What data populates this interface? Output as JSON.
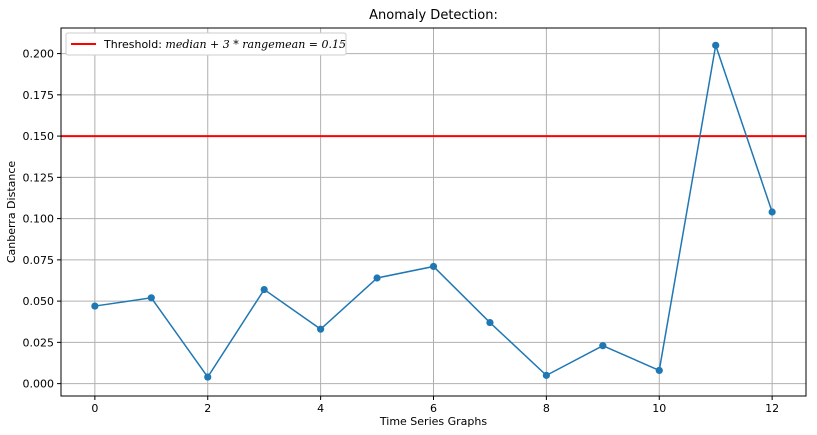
{
  "chart_data": {
    "type": "line",
    "title": "Anomaly Detection:",
    "xlabel": "Time Series Graphs",
    "ylabel": "Canberra Distance",
    "xlim": [
      -0.6,
      12.6
    ],
    "ylim": [
      -0.0075,
      0.2155
    ],
    "xticks": [
      0,
      2,
      4,
      6,
      8,
      10,
      12
    ],
    "xtick_labels": [
      "0",
      "2",
      "4",
      "6",
      "8",
      "10",
      "12"
    ],
    "yticks": [
      0.0,
      0.025,
      0.05,
      0.075,
      0.1,
      0.125,
      0.15,
      0.175,
      0.2
    ],
    "ytick_labels": [
      "0.000",
      "0.025",
      "0.050",
      "0.075",
      "0.100",
      "0.125",
      "0.150",
      "0.175",
      "0.200"
    ],
    "grid": true,
    "legend_position": "top-left",
    "series": [
      {
        "color": "#1f77b4",
        "x": [
          0,
          1,
          2,
          3,
          4,
          5,
          6,
          7,
          8,
          9,
          10,
          11,
          12
        ],
        "y": [
          0.047,
          0.052,
          0.004,
          0.057,
          0.033,
          0.064,
          0.071,
          0.037,
          0.005,
          0.023,
          0.008,
          0.205,
          0.104
        ]
      }
    ],
    "threshold": {
      "value": 0.15,
      "color": "#ff0000",
      "legend_prefix": "Threshold: ",
      "legend_formula": "median + 3 * rangemean = 0.15"
    }
  }
}
